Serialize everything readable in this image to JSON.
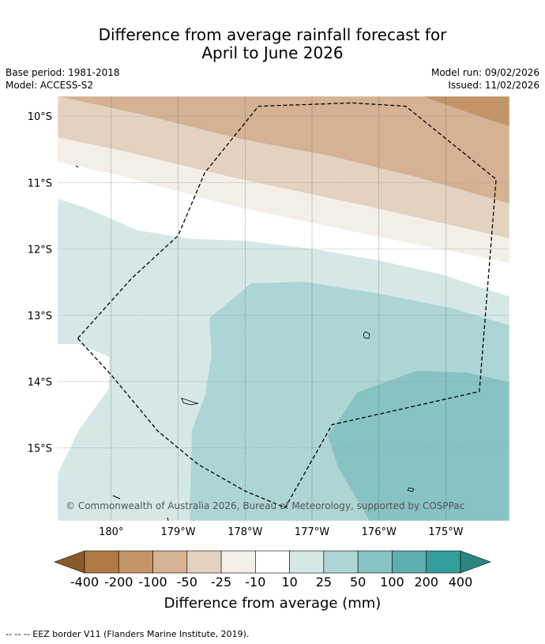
{
  "title_line1": "Difference from average rainfall forecast for",
  "title_line2": "April to June 2026",
  "meta": {
    "base_period": "Base period: 1981-2018",
    "model": "Model: ACCESS-S2",
    "model_run": "Model run: 09/02/2026",
    "issued": "Issued: 11/02/2026"
  },
  "map": {
    "extent": {
      "lon_min": 179.2,
      "lon_max": 185.95,
      "lat_min": -16.1,
      "lat_max": -9.7
    },
    "lat_ticks": [
      "10°S",
      "11°S",
      "12°S",
      "13°S",
      "14°S",
      "15°S"
    ],
    "lon_ticks": [
      "180°",
      "179°W",
      "178°W",
      "177°W",
      "176°W",
      "175°W"
    ],
    "copyright": "© Commonwealth of Australia 2026, Bureau of Meteorology, supported by COSPPac",
    "eez_border": [
      [
        179.5,
        -13.35
      ],
      [
        180.0,
        -13.9
      ],
      [
        180.7,
        -14.75
      ],
      [
        181.3,
        -15.25
      ],
      [
        182.0,
        -15.65
      ],
      [
        182.6,
        -15.9
      ],
      [
        183.3,
        -14.65
      ],
      [
        185.5,
        -14.15
      ],
      [
        185.75,
        -10.95
      ],
      [
        184.4,
        -9.85
      ],
      [
        183.6,
        -9.8
      ],
      [
        182.2,
        -9.85
      ],
      [
        181.4,
        -10.85
      ],
      [
        181.0,
        -11.8
      ],
      [
        180.3,
        -12.45
      ],
      [
        179.5,
        -13.35
      ]
    ],
    "islands": [
      {
        "name": "island-a",
        "points": [
          [
            183.8,
            -13.25
          ],
          [
            183.86,
            -13.28
          ],
          [
            183.85,
            -13.35
          ],
          [
            183.78,
            -13.34
          ],
          [
            183.77,
            -13.28
          ]
        ]
      },
      {
        "name": "island-b",
        "points": [
          [
            181.05,
            -14.25
          ],
          [
            181.2,
            -14.3
          ],
          [
            181.3,
            -14.33
          ],
          [
            181.18,
            -14.35
          ],
          [
            181.08,
            -14.32
          ]
        ]
      },
      {
        "name": "island-c",
        "points": [
          [
            184.45,
            -15.6
          ],
          [
            184.52,
            -15.62
          ],
          [
            184.5,
            -15.66
          ],
          [
            184.43,
            -15.64
          ]
        ]
      }
    ]
  },
  "colorbar": {
    "labels": [
      "-400",
      "-200",
      "-100",
      "-50",
      "-25",
      "-10",
      "10",
      "25",
      "50",
      "100",
      "200",
      "400"
    ],
    "colors": [
      "#8b5a2b",
      "#b07a45",
      "#c39468",
      "#d4b293",
      "#e4d2c1",
      "#f3eee8",
      "#ffffff",
      "#d5e8e7",
      "#aed5d5",
      "#87c3c2",
      "#5cafae",
      "#339e9b",
      "#2c8583"
    ],
    "label": "Difference from average (mm)"
  },
  "footer": "--  --  -- EEZ border V11 (Flanders Marine Institute, 2019)."
}
